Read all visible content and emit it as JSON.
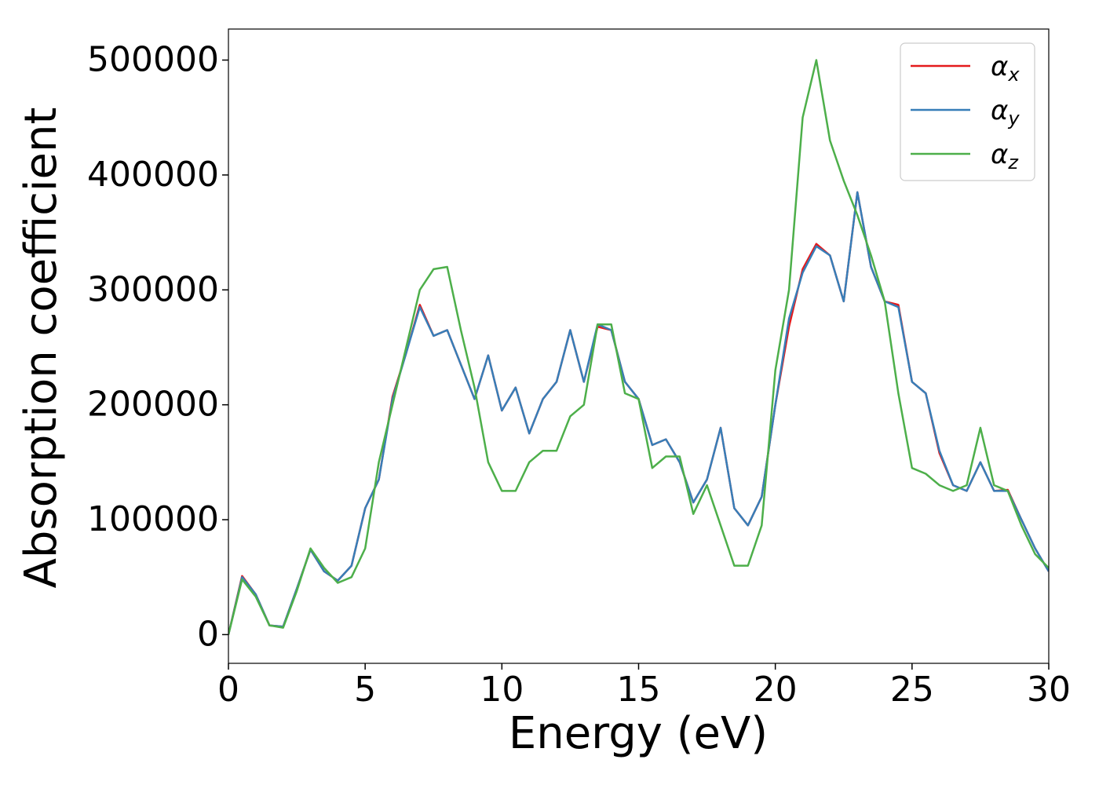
{
  "chart_data": {
    "type": "line",
    "xlabel": "Energy (eV)",
    "ylabel": "Absorption coefficient",
    "x": [
      0,
      0.5,
      1,
      1.5,
      2,
      2.5,
      3,
      3.5,
      4,
      4.5,
      5,
      5.5,
      6,
      6.5,
      7,
      7.5,
      8,
      8.5,
      9,
      9.5,
      10,
      10.5,
      11,
      11.5,
      12,
      12.5,
      13,
      13.5,
      14,
      14.5,
      15,
      15.5,
      16,
      16.5,
      17,
      17.5,
      18,
      18.5,
      19,
      19.5,
      20,
      20.5,
      21,
      21.5,
      22,
      22.5,
      23,
      23.5,
      24,
      24.5,
      25,
      25.5,
      26,
      26.5,
      27,
      27.5,
      28,
      28.5,
      29,
      29.5,
      30
    ],
    "series": [
      {
        "name": "αx",
        "color": "#e41a1c",
        "values": [
          0,
          51000,
          35000,
          8000,
          7000,
          40000,
          74000,
          55000,
          47000,
          60000,
          110000,
          135000,
          207000,
          245000,
          287000,
          260000,
          265000,
          235000,
          205000,
          243000,
          195000,
          215000,
          175000,
          205000,
          220000,
          265000,
          220000,
          268000,
          265000,
          220000,
          205000,
          165000,
          170000,
          150000,
          115000,
          135000,
          180000,
          110000,
          95000,
          120000,
          200000,
          268000,
          318000,
          340000,
          330000,
          290000,
          385000,
          320000,
          290000,
          287000,
          220000,
          210000,
          158000,
          130000,
          125000,
          150000,
          125000,
          126000,
          100000,
          75000,
          55000
        ]
      },
      {
        "name": "αy",
        "color": "#377eb8",
        "values": [
          0,
          50000,
          35000,
          8000,
          7000,
          40000,
          74000,
          55000,
          47000,
          60000,
          110000,
          135000,
          205000,
          245000,
          285000,
          260000,
          265000,
          235000,
          205000,
          243000,
          195000,
          215000,
          175000,
          205000,
          220000,
          265000,
          220000,
          270000,
          265000,
          220000,
          205000,
          165000,
          170000,
          150000,
          115000,
          135000,
          180000,
          110000,
          95000,
          120000,
          200000,
          275000,
          315000,
          338000,
          330000,
          290000,
          385000,
          320000,
          290000,
          285000,
          220000,
          210000,
          160000,
          130000,
          125000,
          150000,
          125000,
          125000,
          100000,
          75000,
          55000
        ]
      },
      {
        "name": "αz",
        "color": "#4daf4a",
        "values": [
          0,
          48000,
          33000,
          8000,
          6000,
          38000,
          75000,
          58000,
          45000,
          50000,
          75000,
          150000,
          200000,
          250000,
          300000,
          318000,
          320000,
          265000,
          215000,
          150000,
          125000,
          125000,
          150000,
          160000,
          160000,
          190000,
          200000,
          270000,
          270000,
          210000,
          205000,
          145000,
          155000,
          155000,
          105000,
          130000,
          95000,
          60000,
          60000,
          95000,
          230000,
          300000,
          450000,
          500000,
          430000,
          395000,
          365000,
          330000,
          290000,
          210000,
          145000,
          140000,
          130000,
          125000,
          130000,
          180000,
          130000,
          125000,
          95000,
          70000,
          58000
        ]
      }
    ],
    "xlim": [
      0,
      30
    ],
    "xticks": [
      0,
      5,
      10,
      15,
      20,
      25,
      30
    ],
    "ylim": [
      -25000,
      527000
    ],
    "yticks": [
      0,
      100000,
      200000,
      300000,
      400000,
      500000
    ],
    "legend": "upper right"
  }
}
